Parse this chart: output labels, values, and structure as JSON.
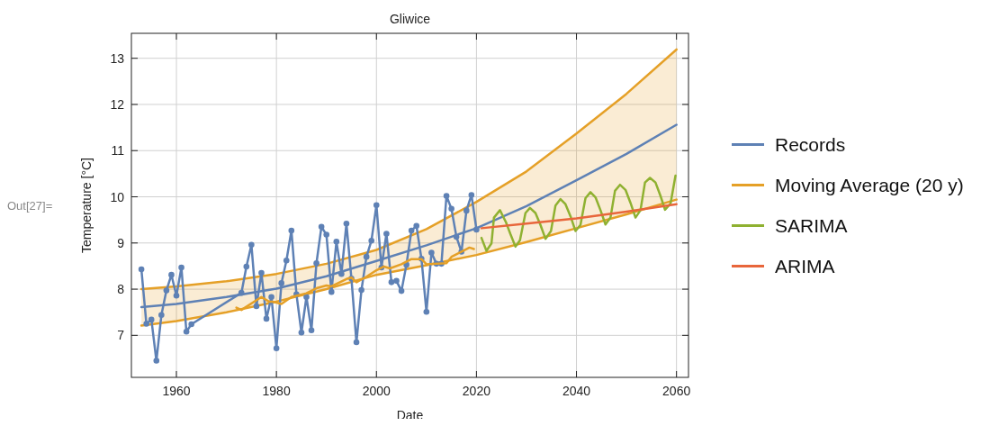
{
  "chart_data": {
    "type": "line",
    "title": "Gliwice",
    "xlabel": "Date",
    "ylabel": "Temperature [°C]",
    "annotations": [
      "Out[27]="
    ],
    "xlim": [
      1951,
      2062.4
    ],
    "ylim": [
      6.09,
      13.54
    ],
    "xticks": [
      1960,
      1980,
      2000,
      2020,
      2040,
      2060
    ],
    "yticks": [
      7,
      8,
      9,
      10,
      11,
      12,
      13
    ],
    "grid": true,
    "legend": "right",
    "line_style": "solid",
    "series": [
      {
        "color": "#e5a027",
        "x": [
          1953,
          1960,
          1970,
          1980,
          1990,
          2000,
          2010,
          2020,
          2030,
          2040,
          2050,
          2060
        ],
        "values": [
          8.0,
          8.06,
          8.17,
          8.33,
          8.55,
          8.85,
          9.3,
          9.89,
          10.55,
          11.37,
          12.23,
          13.19
        ]
      },
      {
        "color": "#e5a027",
        "x": [
          1953,
          1960,
          1970,
          1980,
          1990,
          2000,
          2010,
          2020,
          2030,
          2040,
          2050,
          2060
        ],
        "values": [
          7.21,
          7.31,
          7.5,
          7.73,
          8.0,
          8.31,
          8.52,
          8.74,
          9.02,
          9.32,
          9.62,
          9.94
        ]
      },
      {
        "color": "#5e81b5",
        "x": [
          1953,
          1960,
          1970,
          1980,
          1990,
          2000,
          2010,
          2020,
          2030,
          2040,
          2050,
          2060
        ],
        "values": [
          7.61,
          7.68,
          7.83,
          8.01,
          8.28,
          8.61,
          8.95,
          9.32,
          9.8,
          10.36,
          10.93,
          11.56
        ],
        "lower": [
          7.21,
          7.31,
          7.5,
          7.73,
          8.0,
          8.31,
          8.52,
          8.74,
          9.02,
          9.32,
          9.62,
          9.94
        ],
        "upper": [
          8.0,
          8.06,
          8.17,
          8.33,
          8.55,
          8.85,
          9.3,
          9.89,
          10.55,
          11.37,
          12.23,
          13.19
        ]
      },
      {
        "name": "Records",
        "color": "#5e81b5",
        "marker": "circle",
        "x": [
          1953,
          1954,
          1955,
          1956,
          1957,
          1958,
          1959,
          1960,
          1961,
          1962,
          1963,
          1973,
          1974,
          1975,
          1976,
          1977,
          1978,
          1979,
          1980,
          1981,
          1982,
          1983,
          1984,
          1985,
          1986,
          1987,
          1988,
          1989,
          1990,
          1991,
          1992,
          1993,
          1994,
          1995,
          1996,
          1997,
          1998,
          1999,
          2000,
          2001,
          2002,
          2003,
          2004,
          2005,
          2006,
          2007,
          2008,
          2009,
          2010,
          2011,
          2012,
          2013,
          2014,
          2015,
          2016,
          2017,
          2018,
          2019,
          2020
        ],
        "values": [
          8.43,
          7.25,
          7.34,
          6.45,
          7.44,
          7.97,
          8.31,
          7.86,
          8.47,
          7.08,
          7.24,
          7.92,
          8.49,
          8.96,
          7.63,
          8.35,
          7.36,
          7.83,
          6.72,
          8.13,
          8.62,
          9.27,
          7.89,
          7.06,
          7.83,
          7.11,
          8.56,
          9.35,
          9.18,
          7.94,
          9.03,
          8.33,
          9.42,
          8.23,
          6.85,
          7.98,
          8.7,
          9.05,
          9.82,
          8.47,
          9.2,
          8.15,
          8.18,
          7.96,
          8.53,
          9.27,
          9.37,
          8.66,
          7.51,
          8.79,
          8.55,
          8.55,
          10.02,
          9.74,
          9.13,
          8.81,
          9.7,
          10.04,
          9.29
        ]
      },
      {
        "name": "Moving Average (20 y)",
        "color": "#e5a027",
        "x": [
          1972,
          1973,
          1977,
          1978.5,
          1979.2,
          1981,
          1983,
          1986,
          1988,
          1990,
          1991,
          1994,
          1995,
          1996,
          1998,
          2000,
          2001.5,
          2002.7,
          2005,
          2007,
          2009,
          2010,
          2014,
          2015,
          2018.6,
          2019.5
        ],
        "values": [
          7.6,
          7.55,
          7.83,
          7.73,
          7.73,
          7.68,
          7.83,
          7.91,
          8.02,
          8.08,
          8.06,
          8.22,
          8.25,
          8.15,
          8.27,
          8.41,
          8.49,
          8.45,
          8.54,
          8.65,
          8.65,
          8.54,
          8.56,
          8.7,
          8.9,
          8.87
        ]
      },
      {
        "name": "SARIMA",
        "color": "#8fb131",
        "x": [
          2021,
          2022,
          2023,
          2023.5,
          2024.7,
          2025.9,
          2026.8,
          2027.8,
          2028.7,
          2029.8,
          2030.7,
          2031.8,
          2032.8,
          2033.8,
          2034.9,
          2035.8,
          2036.8,
          2037.8,
          2038.9,
          2039.8,
          2040.8,
          2041.8,
          2042.8,
          2043.8,
          2044.8,
          2045.8,
          2046.8,
          2047.7,
          2048.7,
          2049.8,
          2050.8,
          2051.8,
          2052.8,
          2053.7,
          2054.7,
          2055.8,
          2056.8,
          2057.7,
          2058.8,
          2059.8
        ],
        "values": [
          9.11,
          8.83,
          8.99,
          9.55,
          9.71,
          9.45,
          9.19,
          8.92,
          9.06,
          9.65,
          9.76,
          9.65,
          9.39,
          9.09,
          9.26,
          9.81,
          9.95,
          9.84,
          9.55,
          9.26,
          9.39,
          9.97,
          10.1,
          9.99,
          9.71,
          9.4,
          9.55,
          10.13,
          10.26,
          10.15,
          9.87,
          9.55,
          9.71,
          10.31,
          10.41,
          10.31,
          10.02,
          9.72,
          9.85,
          10.46
        ]
      },
      {
        "name": "ARIMA",
        "color": "#e8663b",
        "x": [
          2021,
          2030,
          2040,
          2050,
          2060
        ],
        "values": [
          9.32,
          9.42,
          9.53,
          9.68,
          9.84
        ]
      }
    ]
  }
}
